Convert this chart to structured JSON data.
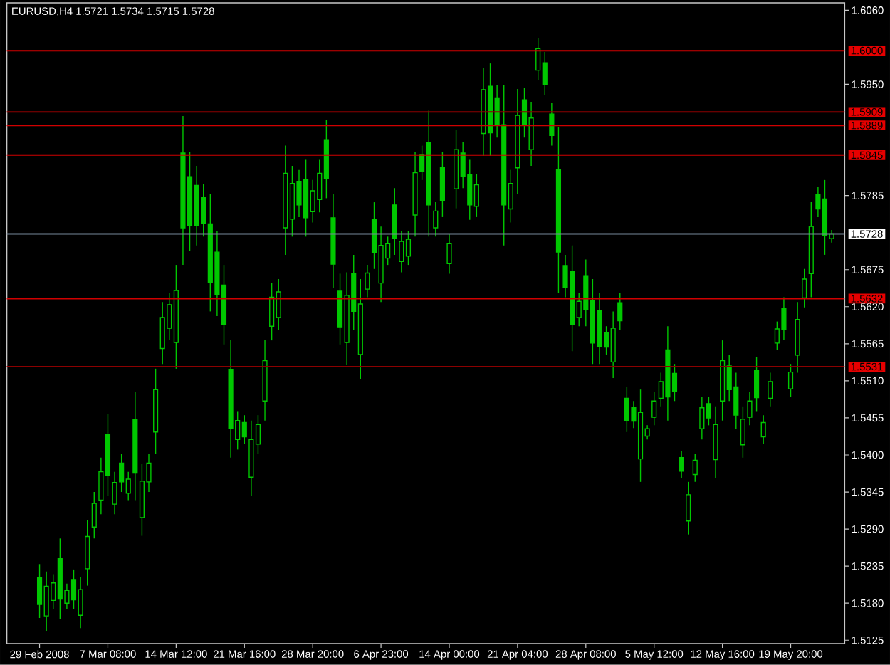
{
  "chart_data": {
    "type": "candlestick",
    "title": "EURUSD,H4  1.5721 1.5734 1.5715 1.5728",
    "categories": [
      "29 Feb 2008",
      null,
      null,
      null,
      null,
      null,
      null,
      null,
      null,
      null,
      "7 Mar 08:00",
      null,
      null,
      null,
      null,
      null,
      null,
      null,
      null,
      null,
      "14 Mar 12:00",
      null,
      null,
      null,
      null,
      null,
      null,
      null,
      null,
      null,
      "21 Mar 16:00",
      null,
      null,
      null,
      null,
      null,
      null,
      null,
      null,
      null,
      "28 Mar 20:00",
      null,
      null,
      null,
      null,
      null,
      null,
      null,
      null,
      null,
      "6 Apr 23:00",
      null,
      null,
      null,
      null,
      null,
      null,
      null,
      null,
      null,
      "14 Apr 00:00",
      null,
      null,
      null,
      null,
      null,
      null,
      null,
      null,
      null,
      "21 Apr 04:00",
      null,
      null,
      null,
      null,
      null,
      null,
      null,
      null,
      null,
      "28 Apr 08:00",
      null,
      null,
      null,
      null,
      null,
      null,
      null,
      null,
      null,
      "5 May 12:00",
      null,
      null,
      null,
      null,
      null,
      null,
      null,
      null,
      null,
      "12 May 16:00",
      null,
      null,
      null,
      null,
      null,
      null,
      null,
      null,
      null,
      "19 May 20:00",
      null,
      null,
      null,
      null,
      null,
      null
    ],
    "ohlc": [
      [
        1.5218,
        1.5238,
        1.5158,
        1.5178
      ],
      [
        1.5161,
        1.5227,
        1.5139,
        1.5205
      ],
      [
        1.5184,
        1.5223,
        1.5171,
        1.521
      ],
      [
        1.5246,
        1.5276,
        1.5156,
        1.5186
      ],
      [
        1.518,
        1.5209,
        1.5171,
        1.5199
      ],
      [
        1.5215,
        1.523,
        1.5171,
        1.5185
      ],
      [
        1.5162,
        1.5219,
        1.5143,
        1.52
      ],
      [
        1.5231,
        1.5303,
        1.5206,
        1.5279
      ],
      [
        1.5293,
        1.5345,
        1.5276,
        1.5328
      ],
      [
        1.5333,
        1.5396,
        1.5312,
        1.5375
      ],
      [
        1.5431,
        1.5461,
        1.5339,
        1.537
      ],
      [
        1.5327,
        1.5375,
        1.5312,
        1.5359
      ],
      [
        1.5388,
        1.5402,
        1.5345,
        1.536
      ],
      [
        1.5343,
        1.5375,
        1.5333,
        1.5364
      ],
      [
        1.5453,
        1.5493,
        1.5333,
        1.5373
      ],
      [
        1.5307,
        1.5387,
        1.528,
        1.5361
      ],
      [
        1.536,
        1.5402,
        1.5345,
        1.5388
      ],
      [
        1.5434,
        1.5528,
        1.5402,
        1.5497
      ],
      [
        1.5558,
        1.5627,
        1.5535,
        1.5604
      ],
      [
        1.5588,
        1.564,
        1.557,
        1.5623
      ],
      [
        1.5567,
        1.5682,
        1.5528,
        1.5644
      ],
      [
        1.5848,
        1.5903,
        1.5682,
        1.5737
      ],
      [
        1.5813,
        1.585,
        1.5703,
        1.574
      ],
      [
        1.58,
        1.5829,
        1.5711,
        1.5741
      ],
      [
        1.5782,
        1.5802,
        1.5724,
        1.5743
      ],
      [
        1.5743,
        1.5787,
        1.5613,
        1.5656
      ],
      [
        1.5701,
        1.5732,
        1.5606,
        1.5638
      ],
      [
        1.5652,
        1.5682,
        1.5564,
        1.5594
      ],
      [
        1.5527,
        1.557,
        1.5396,
        1.5439
      ],
      [
        1.5423,
        1.5465,
        1.5408,
        1.5451
      ],
      [
        1.5448,
        1.5459,
        1.5417,
        1.5427
      ],
      [
        1.5367,
        1.5451,
        1.5339,
        1.5423
      ],
      [
        1.5416,
        1.5459,
        1.5402,
        1.5445
      ],
      [
        1.548,
        1.557,
        1.5451,
        1.554
      ],
      [
        1.5591,
        1.5655,
        1.557,
        1.5634
      ],
      [
        1.5604,
        1.5661,
        1.5585,
        1.5642
      ],
      [
        1.5737,
        1.5859,
        1.5697,
        1.5818
      ],
      [
        1.575,
        1.5829,
        1.5724,
        1.5803
      ],
      [
        1.5806,
        1.5823,
        1.5753,
        1.5771
      ],
      [
        1.5809,
        1.5838,
        1.5724,
        1.5752
      ],
      [
        1.5761,
        1.5808,
        1.5745,
        1.5792
      ],
      [
        1.5779,
        1.5838,
        1.576,
        1.5818
      ],
      [
        1.5868,
        1.5897,
        1.5781,
        1.581
      ],
      [
        1.5752,
        1.5787,
        1.5648,
        1.5683
      ],
      [
        1.5643,
        1.5669,
        1.5564,
        1.559
      ],
      [
        1.5567,
        1.5671,
        1.5533,
        1.5637
      ],
      [
        1.5669,
        1.5697,
        1.5585,
        1.5613
      ],
      [
        1.5549,
        1.5661,
        1.5512,
        1.5624
      ],
      [
        1.5646,
        1.5682,
        1.5634,
        1.567
      ],
      [
        1.575,
        1.5775,
        1.5676,
        1.57
      ],
      [
        1.5655,
        1.5739,
        1.5627,
        1.5711
      ],
      [
        1.5692,
        1.5724,
        1.5682,
        1.5714
      ],
      [
        1.5771,
        1.5796,
        1.5697,
        1.5721
      ],
      [
        1.5687,
        1.5732,
        1.5671,
        1.5717
      ],
      [
        1.5695,
        1.5732,
        1.5682,
        1.572
      ],
      [
        1.5756,
        1.585,
        1.5724,
        1.5819
      ],
      [
        1.5846,
        1.5859,
        1.5808,
        1.5821
      ],
      [
        1.5864,
        1.5911,
        1.5724,
        1.5771
      ],
      [
        1.5737,
        1.5775,
        1.5724,
        1.5762
      ],
      [
        1.5826,
        1.585,
        1.5753,
        1.5778
      ],
      [
        1.5684,
        1.5728,
        1.5669,
        1.5714
      ],
      [
        1.5795,
        1.5882,
        1.5766,
        1.5853
      ],
      [
        1.5848,
        1.5865,
        1.5796,
        1.5813
      ],
      [
        1.5816,
        1.5838,
        1.5749,
        1.5771
      ],
      [
        1.5769,
        1.5817,
        1.5753,
        1.5801
      ],
      [
        1.5877,
        1.5974,
        1.5844,
        1.5942
      ],
      [
        1.5947,
        1.5981,
        1.5844,
        1.5878
      ],
      [
        1.593,
        1.5949,
        1.5871,
        1.5891
      ],
      [
        1.589,
        1.5949,
        1.5711,
        1.5771
      ],
      [
        1.5765,
        1.5823,
        1.5745,
        1.5803
      ],
      [
        1.5826,
        1.5943,
        1.5787,
        1.5904
      ],
      [
        1.5927,
        1.5945,
        1.5871,
        1.589
      ],
      [
        1.5853,
        1.5924,
        1.5829,
        1.59
      ],
      [
        1.5971,
        1.6019,
        1.5956,
        1.6003
      ],
      [
        1.5982,
        1.5998,
        1.5934,
        1.595
      ],
      [
        1.5906,
        1.5922,
        1.5859,
        1.5874
      ],
      [
        1.5824,
        1.5886,
        1.564,
        1.5701
      ],
      [
        1.5681,
        1.5697,
        1.5634,
        1.5649
      ],
      [
        1.5672,
        1.5711,
        1.5554,
        1.5593
      ],
      [
        1.5604,
        1.564,
        1.5591,
        1.5628
      ],
      [
        1.5666,
        1.569,
        1.5591,
        1.5616
      ],
      [
        1.5629,
        1.5661,
        1.5535,
        1.5566
      ],
      [
        1.5614,
        1.564,
        1.5535,
        1.5561
      ],
      [
        1.5581,
        1.5591,
        1.5549,
        1.556
      ],
      [
        1.5538,
        1.5613,
        1.5514,
        1.5588
      ],
      [
        1.5626,
        1.564,
        1.5585,
        1.5599
      ],
      [
        1.5484,
        1.5501,
        1.5434,
        1.5451
      ],
      [
        1.547,
        1.548,
        1.544,
        1.545
      ],
      [
        1.5394,
        1.5497,
        1.536,
        1.5463
      ],
      [
        1.5428,
        1.5444,
        1.5423,
        1.5439
      ],
      [
        1.5456,
        1.5493,
        1.5444,
        1.548
      ],
      [
        1.5484,
        1.5522,
        1.5472,
        1.5509
      ],
      [
        1.5556,
        1.5591,
        1.5451,
        1.5486
      ],
      [
        1.5521,
        1.5535,
        1.548,
        1.5494
      ],
      [
        1.5396,
        1.5406,
        1.5366,
        1.5376
      ],
      [
        1.5302,
        1.536,
        1.5282,
        1.5341
      ],
      [
        1.5371,
        1.5402,
        1.536,
        1.5392
      ],
      [
        1.5439,
        1.5486,
        1.5423,
        1.547
      ],
      [
        1.5476,
        1.5486,
        1.5444,
        1.5455
      ],
      [
        1.5393,
        1.5472,
        1.5366,
        1.5445
      ],
      [
        1.548,
        1.557,
        1.5451,
        1.554
      ],
      [
        1.5532,
        1.5549,
        1.548,
        1.5497
      ],
      [
        1.5501,
        1.5522,
        1.5438,
        1.5459
      ],
      [
        1.5415,
        1.5472,
        1.5396,
        1.5453
      ],
      [
        1.5456,
        1.5493,
        1.5444,
        1.548
      ],
      [
        1.5525,
        1.5545,
        1.5465,
        1.5485
      ],
      [
        1.5427,
        1.5459,
        1.5417,
        1.5448
      ],
      [
        1.5484,
        1.5522,
        1.5472,
        1.5509
      ],
      [
        1.5566,
        1.5598,
        1.5556,
        1.5587
      ],
      [
        1.5618,
        1.5634,
        1.557,
        1.5586
      ],
      [
        1.5498,
        1.5535,
        1.5486,
        1.5523
      ],
      [
        1.5548,
        1.5627,
        1.5522,
        1.5601
      ],
      [
        1.5633,
        1.5676,
        1.5619,
        1.5661
      ],
      [
        1.5669,
        1.5775,
        1.5634,
        1.5739
      ],
      [
        1.5787,
        1.5798,
        1.5753,
        1.5765
      ],
      [
        1.578,
        1.5808,
        1.5697,
        1.5725
      ],
      [
        1.5721,
        1.5734,
        1.5715,
        1.5728
      ]
    ],
    "color": "#00c800",
    "ylim": [
      1.512,
      1.6071
    ],
    "yticks": [
      {
        "value": 1.606,
        "label": "1.6060"
      },
      {
        "value": 1.595,
        "label": "1.5950"
      },
      {
        "value": 1.5785,
        "label": "1.5785"
      },
      {
        "value": 1.5675,
        "label": "1.5675"
      },
      {
        "value": 1.562,
        "label": "1.5620"
      },
      {
        "value": 1.5565,
        "label": "1.5565"
      },
      {
        "value": 1.551,
        "label": "1.5510"
      },
      {
        "value": 1.5455,
        "label": "1.5455"
      },
      {
        "value": 1.54,
        "label": "1.5400"
      },
      {
        "value": 1.5345,
        "label": "1.5345"
      },
      {
        "value": 1.529,
        "label": "1.5290"
      },
      {
        "value": 1.5235,
        "label": "1.5235"
      },
      {
        "value": 1.518,
        "label": "1.5180"
      },
      {
        "value": 1.5125,
        "label": "1.5125"
      }
    ],
    "ref_lines": [
      {
        "axis": "y",
        "value": 1.6,
        "label": "1.6000",
        "color": "#d00000"
      },
      {
        "axis": "y",
        "value": 1.5909,
        "label": "1.5909",
        "color": "#8b0000"
      },
      {
        "axis": "y",
        "value": 1.5889,
        "label": "1.5889",
        "color": "#d00000"
      },
      {
        "axis": "y",
        "value": 1.5845,
        "label": "1.5845",
        "color": "#d00000"
      },
      {
        "axis": "y",
        "value": 1.5728,
        "label": "1.5728",
        "color": "#778899"
      },
      {
        "axis": "y",
        "value": 1.5632,
        "label": "1.5632",
        "color": "#d00000"
      },
      {
        "axis": "y",
        "value": 1.5531,
        "label": "1.5531",
        "color": "#8b0000"
      }
    ]
  }
}
